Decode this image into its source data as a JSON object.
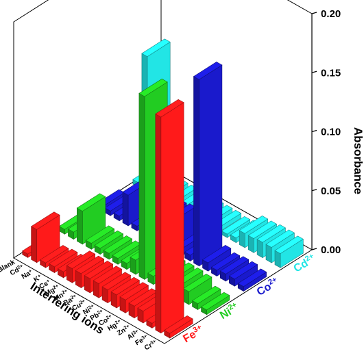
{
  "chart_data": {
    "type": "bar",
    "subtype": "3d-bar",
    "xlabel": "Interfering ions",
    "ylabel": "Absorbance",
    "zlim": [
      0,
      0.2
    ],
    "z_ticks": [
      "0.00",
      "0.05",
      "0.10",
      "0.15",
      "0.20"
    ],
    "categories": [
      "Cr3+",
      "Fe3+",
      "Al3+",
      "Zn2+",
      "Hg2+",
      "Co2+",
      "Pb2+",
      "Ni2+",
      "Cu2+",
      "Ba2+",
      "Mn2+",
      "Mg2+",
      "Cs+",
      "K+",
      "Na+",
      "Cd2+",
      "Blank"
    ],
    "category_labels": [
      {
        "base": "Cr",
        "sup": "3+"
      },
      {
        "base": "Fe",
        "sup": "3+"
      },
      {
        "base": "Al",
        "sup": "3+"
      },
      {
        "base": "Zn",
        "sup": "2+"
      },
      {
        "base": "Hg",
        "sup": "2+"
      },
      {
        "base": "Co",
        "sup": "2+"
      },
      {
        "base": "Pb",
        "sup": "2+"
      },
      {
        "base": "Ni",
        "sup": "2+"
      },
      {
        "base": "Cu",
        "sup": "2+"
      },
      {
        "base": "Ba",
        "sup": "2+"
      },
      {
        "base": "Mn",
        "sup": "2+"
      },
      {
        "base": "Mg",
        "sup": "2+"
      },
      {
        "base": "Cs",
        "sup": "+"
      },
      {
        "base": "K",
        "sup": "+"
      },
      {
        "base": "Na",
        "sup": "+"
      },
      {
        "base": "Cd",
        "sup": "2+"
      },
      {
        "base": "Blank",
        "sup": ""
      }
    ],
    "series": [
      {
        "name": "Fe3+",
        "label_base": "Fe",
        "label_sup": "3+",
        "color": "#ff1a1a",
        "values": [
          0.004,
          0.183,
          0.004,
          0.01,
          0.01,
          0.011,
          0.011,
          0.011,
          0.012,
          0.012,
          0.012,
          0.012,
          0.005,
          0.005,
          0.004,
          0.028,
          0.003
        ]
      },
      {
        "name": "Ni2+",
        "label_base": "Ni",
        "label_sup": "2+",
        "color": "#22cc22",
        "values": [
          0.004,
          0.005,
          0.011,
          0.012,
          0.012,
          0.012,
          0.007,
          0.155,
          0.012,
          0.005,
          0.005,
          0.005,
          0.005,
          0.005,
          0.028,
          0.006,
          0.004
        ]
      },
      {
        "name": "Co2+",
        "label_base": "Co",
        "label_sup": "2+",
        "color": "#1a1acc",
        "values": [
          0.004,
          0.006,
          0.006,
          0.005,
          0.007,
          0.158,
          0.005,
          0.006,
          0.025,
          0.024,
          0.004,
          0.005,
          0.004,
          0.026,
          0.004,
          0.004,
          0.003
        ]
      },
      {
        "name": "Cd2+",
        "label_base": "Cd",
        "label_sup": "2+",
        "color": "#22e5e5",
        "values": [
          0.012,
          0.013,
          0.013,
          0.012,
          0.012,
          0.004,
          0.003,
          0.004,
          0.004,
          0.004,
          0.004,
          0.004,
          0.004,
          0.004,
          0.004,
          0.115,
          0.004
        ]
      }
    ]
  }
}
